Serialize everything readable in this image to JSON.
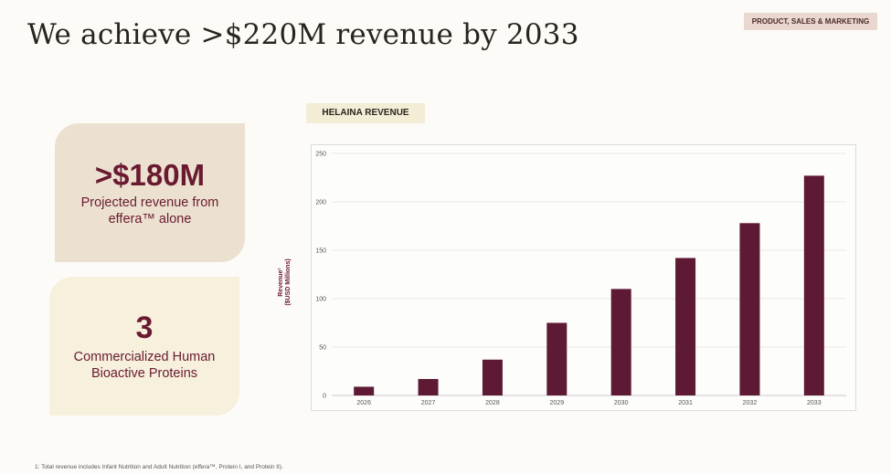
{
  "header": {
    "title": "We achieve >$220M revenue by 2033",
    "tag": "PRODUCT, SALES & MARKETING"
  },
  "cards": [
    {
      "value": ">$180M",
      "text": "Projected revenue from effera™ alone"
    },
    {
      "value": "3",
      "text": "Commercialized Human Bioactive Proteins"
    }
  ],
  "chart_label": "HELAINA REVENUE",
  "chart_data": {
    "type": "bar",
    "title": "HELAINA REVENUE",
    "categories": [
      "2026",
      "2027",
      "2028",
      "2029",
      "2030",
      "2031",
      "2032",
      "2033"
    ],
    "values": [
      9,
      17,
      37,
      75,
      110,
      142,
      178,
      227
    ],
    "xlabel": "",
    "ylabel_line1": "Revenue¹",
    "ylabel_line2": "($USD Millions)",
    "ylim": [
      0,
      250
    ],
    "yticks": [
      "0",
      "50",
      "100",
      "150",
      "200",
      "250"
    ],
    "grid": true,
    "bar_color": "#5e1a34"
  },
  "footnote": "1: Total revenue includes Infant Nutrition and Adult Nutrition (effera™, Protein I, and Protein II)."
}
